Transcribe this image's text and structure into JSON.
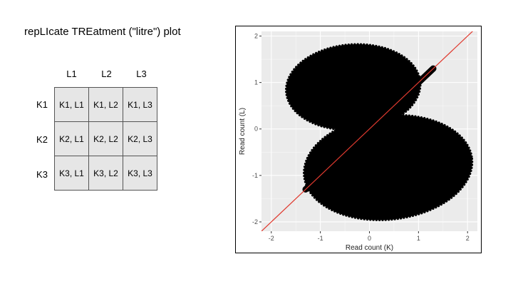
{
  "title": "repLIcate TREatment (\"litre\") plot",
  "grid": {
    "columns": [
      "L1",
      "L2",
      "L3"
    ],
    "rows": [
      "K1",
      "K2",
      "K3"
    ],
    "cells": [
      [
        "K1, L1",
        "K1, L2",
        "K1, L3"
      ],
      [
        "K2, L1",
        "K2, L2",
        "K2, L3"
      ],
      [
        "K3, L1",
        "K3, L2",
        "K3, L3"
      ]
    ],
    "cell_color": "#e6e6e6"
  },
  "chart_data": {
    "type": "scatter",
    "xlabel": "Read count (K)",
    "ylabel": "Read count (L)",
    "xlim": [
      -2.2,
      2.2
    ],
    "ylim": [
      -2.2,
      2.1
    ],
    "xticks": [
      -2,
      -1,
      0,
      1,
      2
    ],
    "yticks": [
      -2,
      -1,
      0,
      1,
      2
    ],
    "grid": true,
    "panel_color": "#ebebeb",
    "point_color": "#000000",
    "line_color": "#e03a2f",
    "reference_line": {
      "slope": 1,
      "intercept": 0
    },
    "clusters": [
      {
        "shape": "ellipse",
        "center": [
          -0.33,
          0.9
        ],
        "radius": [
          1.37,
          0.92
        ],
        "rotation_deg": 4
      },
      {
        "shape": "ellipse",
        "center": [
          0.38,
          -0.83
        ],
        "radius": [
          1.72,
          1.12
        ],
        "rotation_deg": 6
      },
      {
        "shape": "diagonal-band",
        "from": [
          -1.3,
          -1.3
        ],
        "to": [
          1.3,
          1.3
        ]
      }
    ]
  }
}
